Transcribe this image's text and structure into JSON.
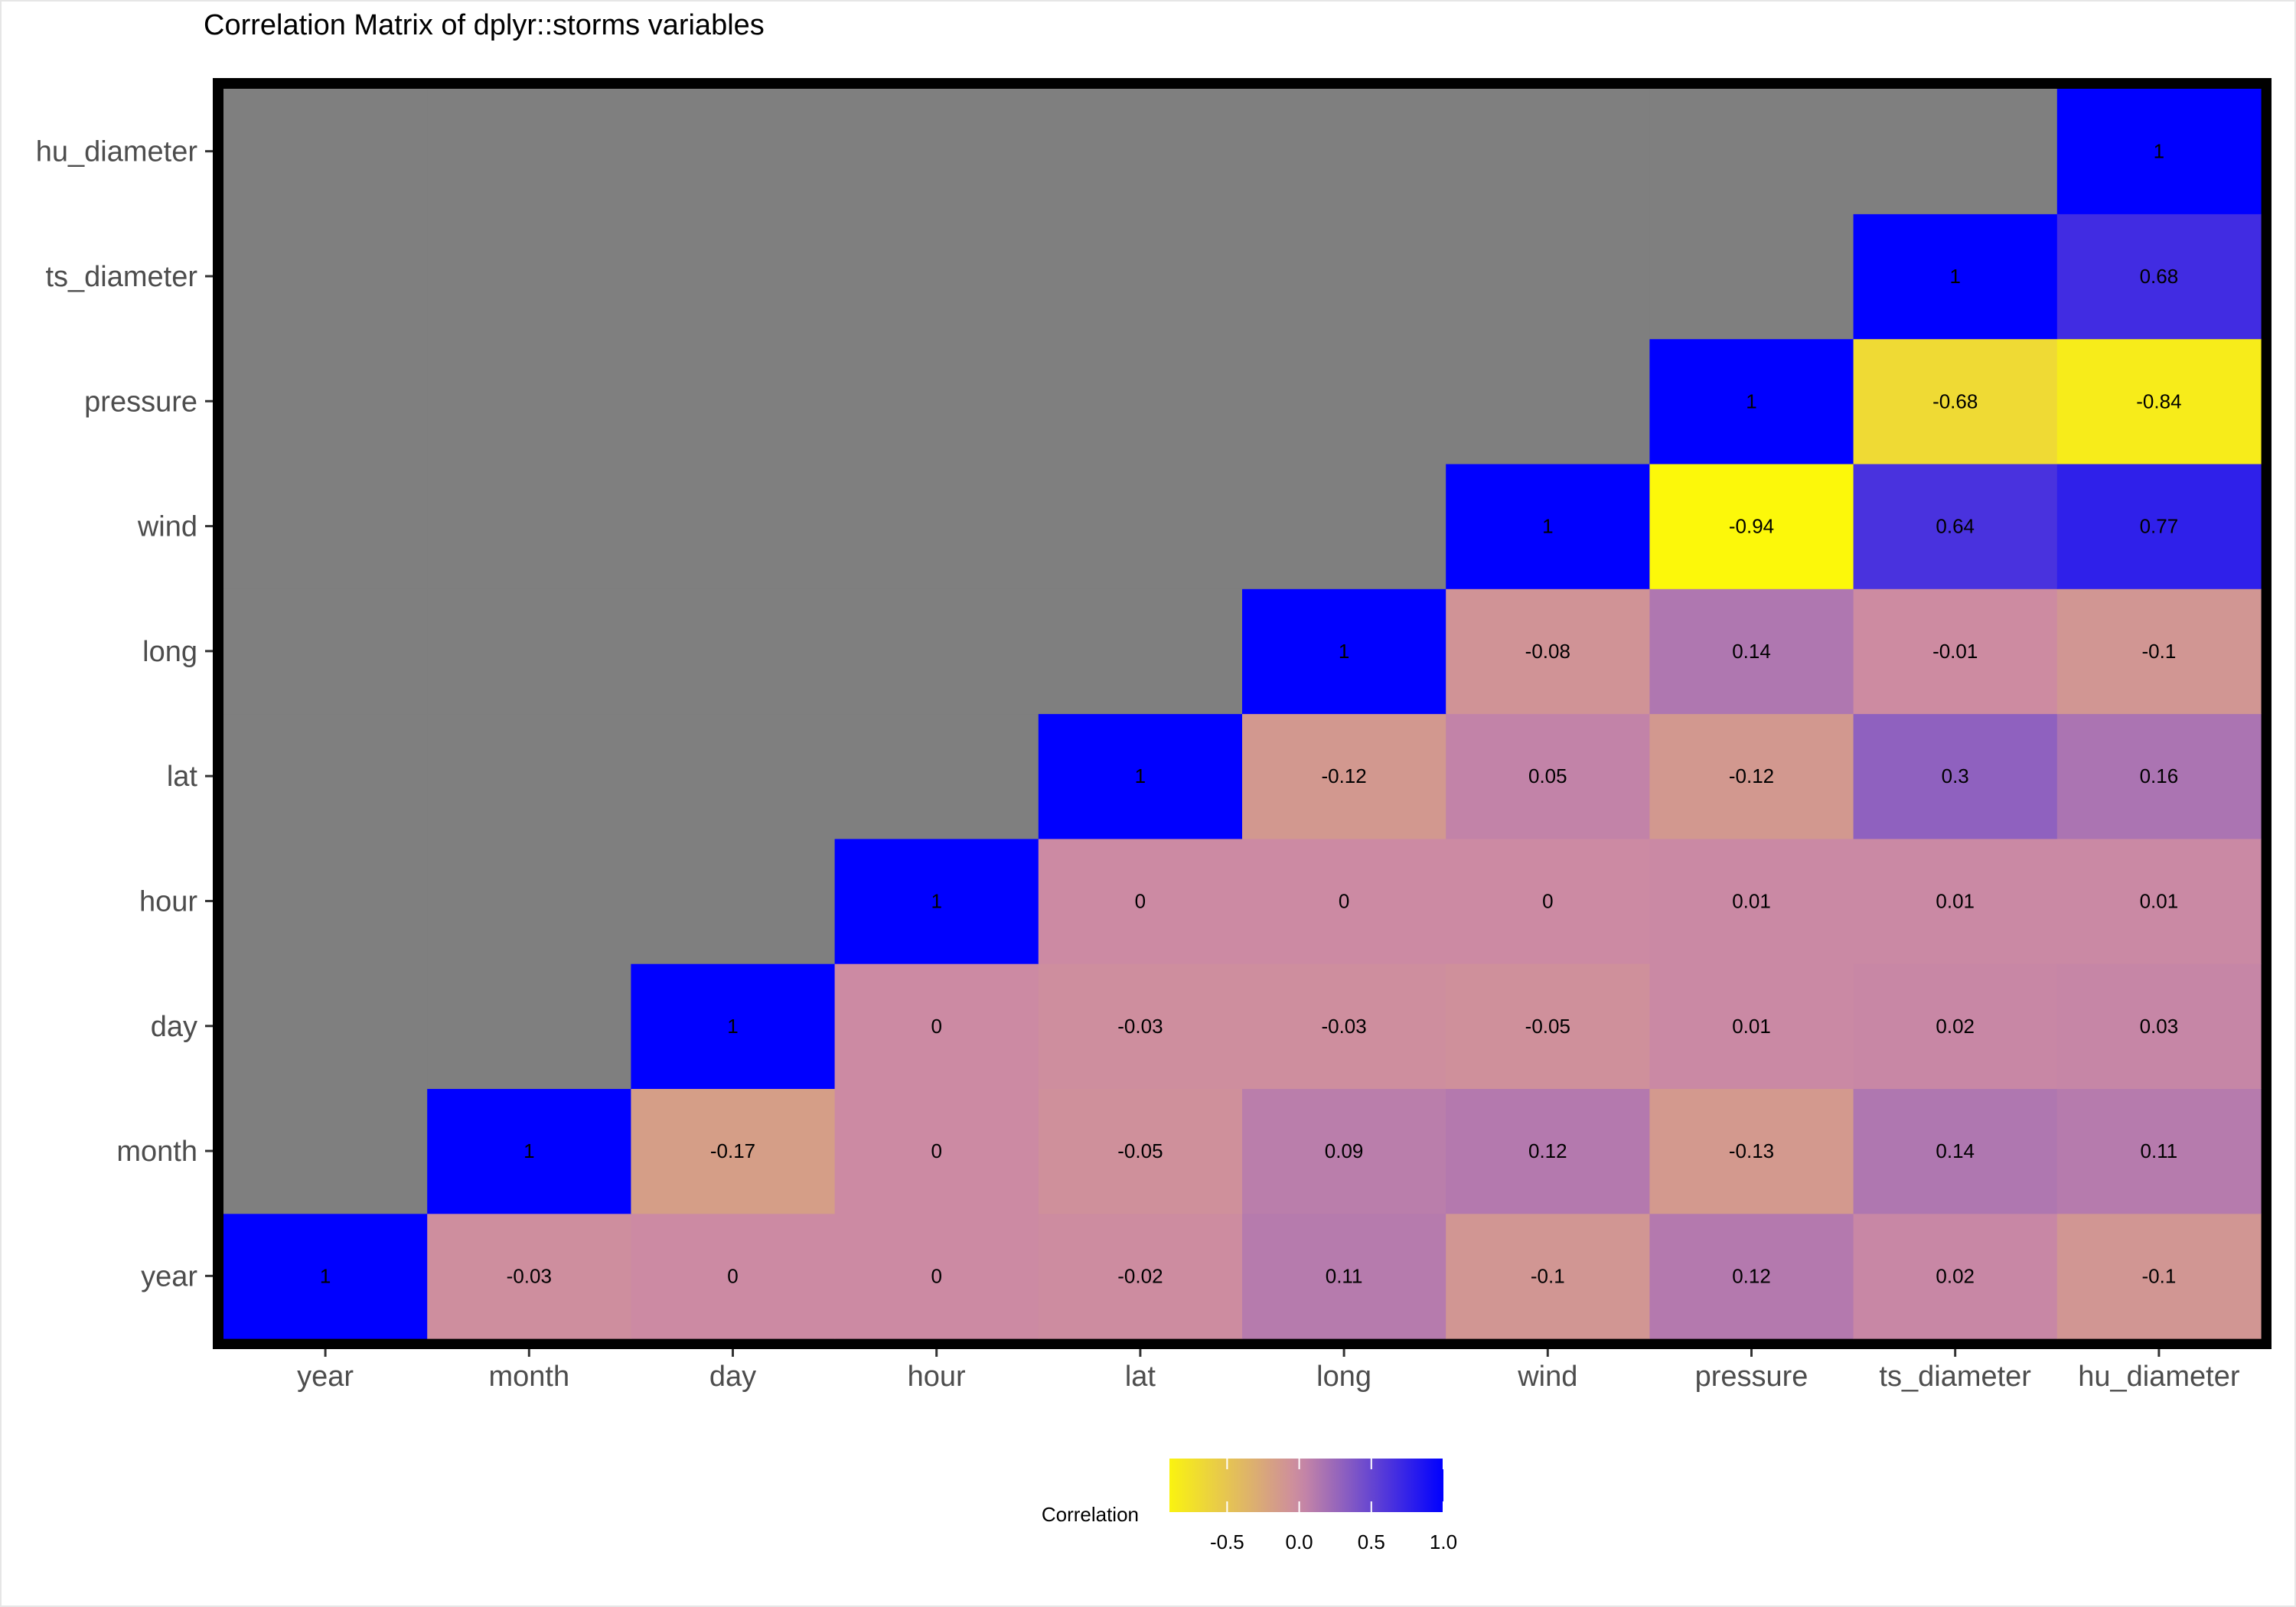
{
  "chart_data": {
    "type": "heatmap",
    "title": "Correlation Matrix of dplyr::storms variables",
    "variables": [
      "year",
      "month",
      "day",
      "hour",
      "lat",
      "long",
      "wind",
      "pressure",
      "ts_diameter",
      "hu_diameter"
    ],
    "x_categories": [
      "year",
      "month",
      "day",
      "hour",
      "lat",
      "long",
      "wind",
      "pressure",
      "ts_diameter",
      "hu_diameter"
    ],
    "y_categories": [
      "year",
      "month",
      "day",
      "hour",
      "lat",
      "long",
      "wind",
      "pressure",
      "ts_diameter",
      "hu_diameter"
    ],
    "matrix": [
      [
        1,
        -0.03,
        0,
        0,
        -0.02,
        0.11,
        -0.1,
        0.12,
        0.02,
        -0.1
      ],
      [
        null,
        1,
        -0.17,
        0,
        -0.05,
        0.09,
        0.12,
        -0.13,
        0.14,
        0.11
      ],
      [
        null,
        null,
        1,
        0,
        -0.03,
        -0.03,
        -0.05,
        0.01,
        0.02,
        0.03
      ],
      [
        null,
        null,
        null,
        1,
        0,
        0,
        0,
        0.01,
        0.01,
        0.01
      ],
      [
        null,
        null,
        null,
        null,
        1,
        -0.12,
        0.05,
        -0.12,
        0.3,
        0.16
      ],
      [
        null,
        null,
        null,
        null,
        null,
        1,
        -0.08,
        0.14,
        -0.01,
        -0.1
      ],
      [
        null,
        null,
        null,
        null,
        null,
        null,
        1,
        -0.94,
        0.64,
        0.77
      ],
      [
        null,
        null,
        null,
        null,
        null,
        null,
        null,
        1,
        -0.68,
        -0.84
      ],
      [
        null,
        null,
        null,
        null,
        null,
        null,
        null,
        null,
        1,
        0.68
      ],
      [
        null,
        null,
        null,
        null,
        null,
        null,
        null,
        null,
        null,
        1
      ]
    ],
    "matrix_note_rows": "row index = y variable, column index = x variable",
    "missing_color": "#7f7f7f",
    "diagonal_color": "#0000ff",
    "colorscale": {
      "low": "#ffff00",
      "mid": "#cc8aa3",
      "high": "#0000ff",
      "limits": [
        -1,
        1
      ]
    },
    "legend": {
      "title": "Correlation",
      "ticks": [
        "-0.5",
        "0.0",
        "0.5",
        "1.0"
      ],
      "position": "bottom"
    },
    "panel_border_color": "#000000"
  }
}
